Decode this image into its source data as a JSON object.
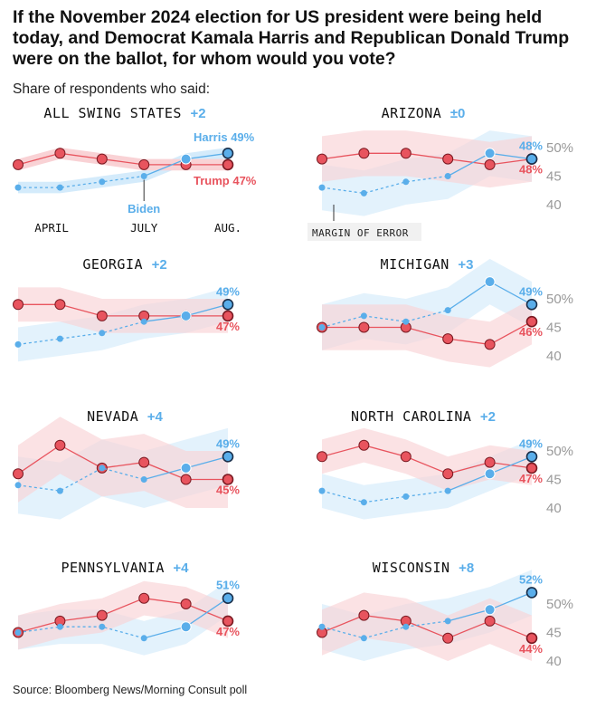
{
  "title": "If the November 2024 election for US president were being held today, and Democrat Kamala Harris and Republican Donald Trump were on the ballot, for whom would you vote?",
  "subtitle": "Share of respondents who said:",
  "source": "Source: Bloomberg News/Morning Consult poll",
  "colors": {
    "harris": "#5aaeea",
    "trump": "#e8545e",
    "harris_band": "#d4ebfb",
    "trump_band": "#f9d2d5"
  },
  "annotation": {
    "margin_of_error": "MARGIN OF ERROR"
  },
  "chart_data": [
    {
      "type": "line",
      "state": "ALL SWING STATES",
      "lead": "+2",
      "ylim": [
        40,
        52
      ],
      "moe": 1,
      "x_labels": [
        "APRIL",
        "JULY",
        "AUG."
      ],
      "series": [
        {
          "name": "Trump",
          "values": [
            47,
            49,
            48,
            47,
            47,
            47
          ],
          "end_label": "Trump 47%"
        },
        {
          "name": "Harris",
          "values": [
            43,
            43,
            44,
            45,
            48,
            49
          ],
          "end_label": "Harris 49%",
          "mid_label": "Biden"
        }
      ]
    },
    {
      "type": "line",
      "state": "ARIZONA",
      "lead": "±0",
      "ylim": [
        40,
        52
      ],
      "moe": 4,
      "y_ticks": [
        "50%",
        "45",
        "40"
      ],
      "series": [
        {
          "name": "Trump",
          "values": [
            48,
            49,
            49,
            48,
            47,
            48
          ],
          "end_label": "48%"
        },
        {
          "name": "Harris",
          "values": [
            43,
            42,
            44,
            45,
            49,
            48
          ],
          "end_label": "48%"
        }
      ]
    },
    {
      "type": "line",
      "state": "GEORGIA",
      "lead": "+2",
      "ylim": [
        40,
        52
      ],
      "moe": 3,
      "series": [
        {
          "name": "Trump",
          "values": [
            49,
            49,
            47,
            47,
            47,
            47
          ],
          "end_label": "47%"
        },
        {
          "name": "Harris",
          "values": [
            42,
            43,
            44,
            46,
            47,
            49
          ],
          "end_label": "49%"
        }
      ]
    },
    {
      "type": "line",
      "state": "MICHIGAN",
      "lead": "+3",
      "ylim": [
        40,
        52
      ],
      "moe": 4,
      "y_ticks": [
        "50%",
        "45",
        "40"
      ],
      "series": [
        {
          "name": "Trump",
          "values": [
            45,
            45,
            45,
            43,
            42,
            46
          ],
          "end_label": "46%"
        },
        {
          "name": "Harris",
          "values": [
            45,
            47,
            46,
            48,
            53,
            49
          ],
          "end_label": "49%"
        }
      ]
    },
    {
      "type": "line",
      "state": "NEVADA",
      "lead": "+4",
      "ylim": [
        40,
        52
      ],
      "moe": 5,
      "series": [
        {
          "name": "Trump",
          "values": [
            46,
            51,
            47,
            48,
            45,
            45
          ],
          "end_label": "45%"
        },
        {
          "name": "Harris",
          "values": [
            44,
            43,
            47,
            45,
            47,
            49
          ],
          "end_label": "49%"
        }
      ]
    },
    {
      "type": "line",
      "state": "NORTH CAROLINA",
      "lead": "+2",
      "ylim": [
        40,
        52
      ],
      "moe": 3,
      "y_ticks": [
        "50%",
        "45",
        "40"
      ],
      "series": [
        {
          "name": "Trump",
          "values": [
            49,
            51,
            49,
            46,
            48,
            47
          ],
          "end_label": "47%"
        },
        {
          "name": "Harris",
          "values": [
            43,
            41,
            42,
            43,
            46,
            49
          ],
          "end_label": "49%"
        }
      ]
    },
    {
      "type": "line",
      "state": "PENNSYLVANIA",
      "lead": "+4",
      "ylim": [
        40,
        52
      ],
      "moe": 3,
      "series": [
        {
          "name": "Trump",
          "values": [
            45,
            47,
            48,
            51,
            50,
            47
          ],
          "end_label": "47%"
        },
        {
          "name": "Harris",
          "values": [
            45,
            46,
            46,
            44,
            46,
            51
          ],
          "end_label": "51%"
        }
      ]
    },
    {
      "type": "line",
      "state": "WISCONSIN",
      "lead": "+8",
      "ylim": [
        40,
        52
      ],
      "moe": 4,
      "y_ticks": [
        "50%",
        "45",
        "40"
      ],
      "series": [
        {
          "name": "Trump",
          "values": [
            45,
            48,
            47,
            44,
            47,
            44
          ],
          "end_label": "44%"
        },
        {
          "name": "Harris",
          "values": [
            46,
            44,
            46,
            47,
            49,
            52
          ],
          "end_label": "52%"
        }
      ]
    }
  ]
}
